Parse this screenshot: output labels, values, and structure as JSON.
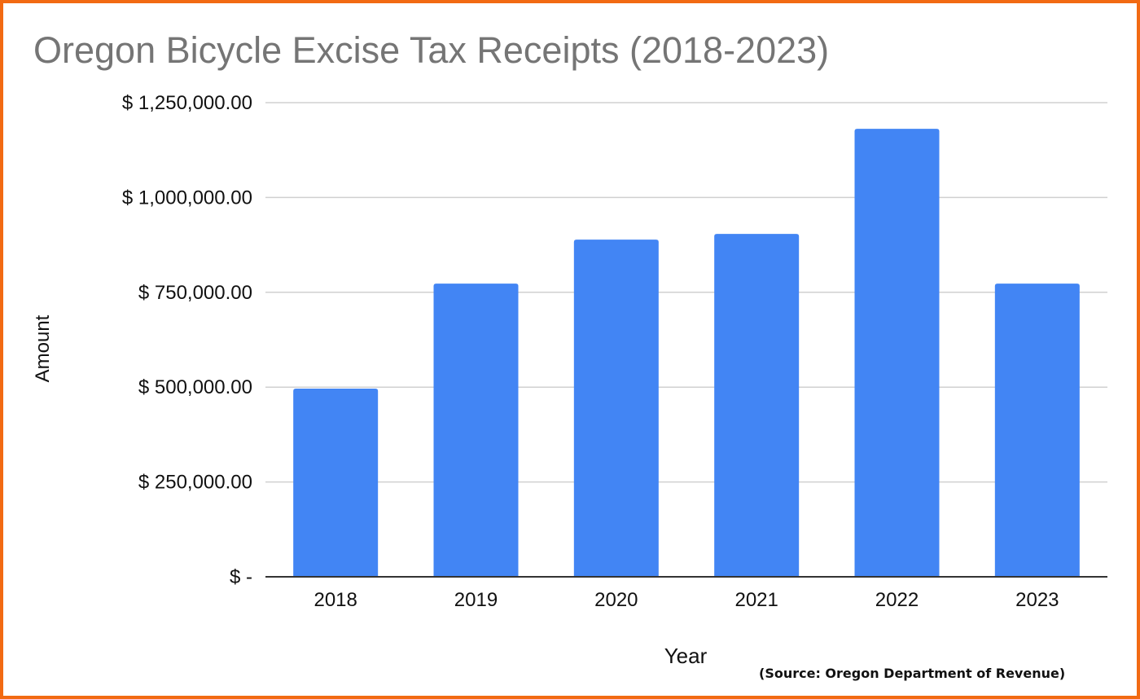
{
  "colors": {
    "border": "#f26a12",
    "bar": "#4285f4",
    "title": "#757575",
    "gridline": "#d0d0d0",
    "axis": "#333333",
    "text": "#111111"
  },
  "source_note": "(Source: Oregon Department of Revenue)",
  "chart_data": {
    "type": "bar",
    "title": "Oregon Bicycle Excise Tax Receipts (2018-2023)",
    "xlabel": "Year",
    "ylabel": "Amount",
    "categories": [
      "2018",
      "2019",
      "2020",
      "2021",
      "2022",
      "2023"
    ],
    "values": [
      496000,
      773000,
      889000,
      904000,
      1181000,
      773000
    ],
    "ylim": [
      0,
      1250000
    ],
    "yticks": [
      0,
      250000,
      500000,
      750000,
      1000000,
      1250000
    ],
    "ytick_labels": [
      "$ -",
      "$ 250,000.00",
      "$ 500,000.00",
      "$ 750,000.00",
      "$ 1,000,000.00",
      "$ 1,250,000.00"
    ],
    "grid": true,
    "legend": "none"
  }
}
